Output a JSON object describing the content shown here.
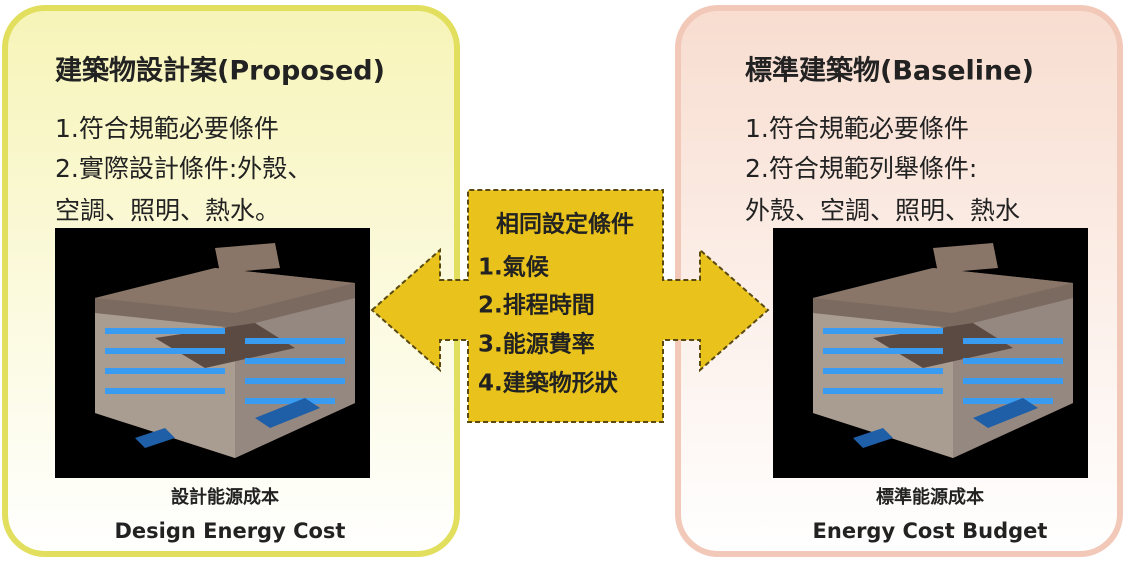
{
  "left_panel": {
    "title": "建築物設計案(Proposed)",
    "lines": [
      "1.符合規範必要條件",
      "2.實際設計條件:外殼、",
      "空調、照明、熱水。"
    ],
    "caption_zh": "設計能源成本",
    "caption_en": "Design Energy Cost"
  },
  "right_panel": {
    "title": "標準建築物(Baseline)",
    "lines": [
      "1.符合規範必要條件",
      "2.符合規範列舉條件:",
      "外殼、空調、照明、熱水"
    ],
    "caption_zh": "標準能源成本",
    "caption_en": "Energy Cost Budget"
  },
  "center": {
    "title": "相同設定條件",
    "items": [
      "1.氣候",
      "2.排程時間",
      "3.能源費率",
      "4.建築物形狀"
    ]
  }
}
